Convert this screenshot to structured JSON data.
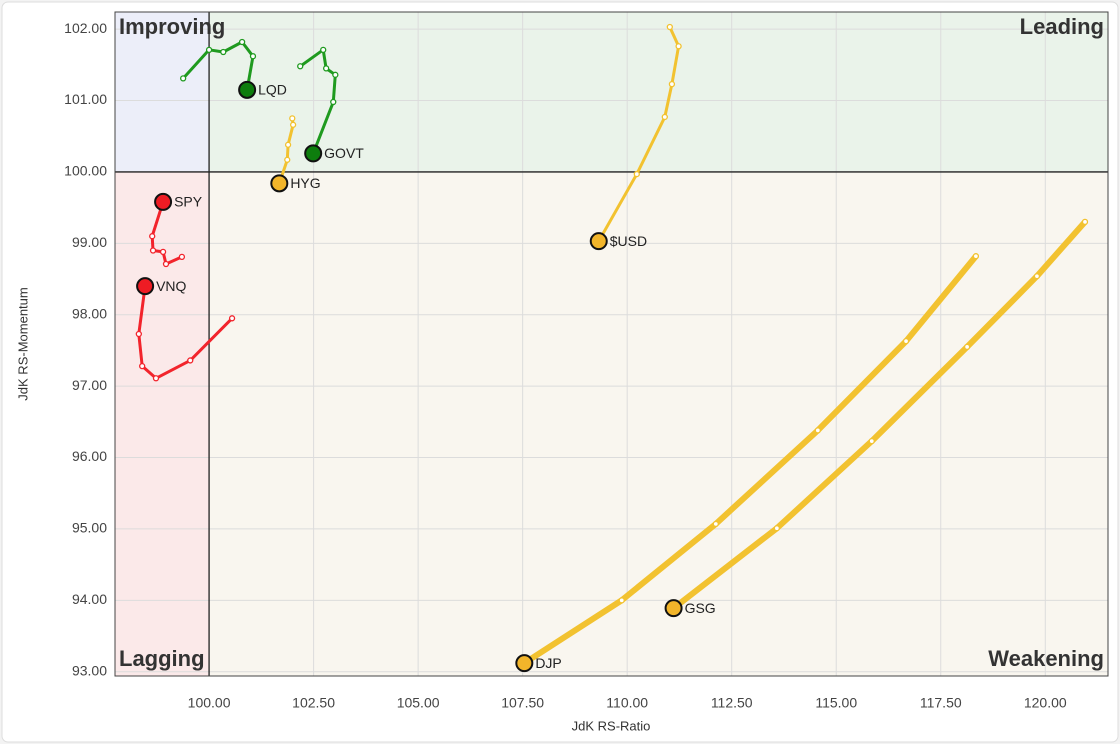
{
  "chart_data": {
    "type": "rrg",
    "x_label": "JdK RS-Ratio",
    "y_label": "JdK RS-Momentum",
    "xlim": [
      97.75,
      121.5
    ],
    "ylim": [
      92.94,
      102.24
    ],
    "center": [
      100,
      100
    ],
    "grid": true,
    "xticks": [
      {
        "value": 100,
        "label": "100.00"
      },
      {
        "value": 102.5,
        "label": "102.50"
      },
      {
        "value": 105,
        "label": "105.00"
      },
      {
        "value": 107.5,
        "label": "107.50"
      },
      {
        "value": 110,
        "label": "110.00"
      },
      {
        "value": 112.5,
        "label": "112.50"
      },
      {
        "value": 115,
        "label": "115.00"
      },
      {
        "value": 117.5,
        "label": "117.50"
      },
      {
        "value": 120,
        "label": "120.00"
      }
    ],
    "yticks": [
      {
        "value": 93,
        "label": "93.00"
      },
      {
        "value": 94,
        "label": "94.00"
      },
      {
        "value": 95,
        "label": "95.00"
      },
      {
        "value": 96,
        "label": "96.00"
      },
      {
        "value": 97,
        "label": "97.00"
      },
      {
        "value": 98,
        "label": "98.00"
      },
      {
        "value": 99,
        "label": "99.00"
      },
      {
        "value": 100,
        "label": "100.00"
      },
      {
        "value": 101,
        "label": "101.00"
      },
      {
        "value": 102,
        "label": "102.00"
      }
    ],
    "quadrants": [
      {
        "text": "Improving",
        "corner": "top-left",
        "color": "#8f93e6",
        "fill": "#eceef9"
      },
      {
        "text": "Leading",
        "corner": "top-right",
        "color": "#5fae5f",
        "fill": "#eaf3ea"
      },
      {
        "text": "Lagging",
        "corner": "bottom-left",
        "color": "#f28c8c",
        "fill": "#fbe9e9"
      },
      {
        "text": "Weakening",
        "corner": "bottom-right",
        "color": "#ecc12f",
        "fill": "#f9f6ef"
      }
    ],
    "series": [
      {
        "name": "LQD",
        "color": "#1f9a1f",
        "head_color": "#0d7d0d",
        "x": [
          99.38,
          100.0,
          100.34,
          100.79,
          101.05,
          100.91
        ],
        "values": [
          101.31,
          101.71,
          101.68,
          101.82,
          101.62,
          101.15
        ]
      },
      {
        "name": "GOVT",
        "color": "#1f9a1f",
        "head_color": "#0d7d0d",
        "x": [
          102.18,
          102.73,
          102.8,
          103.02,
          102.97,
          102.49
        ],
        "values": [
          101.48,
          101.71,
          101.45,
          101.36,
          100.98,
          100.26
        ]
      },
      {
        "name": "HYG",
        "color": "#f2c230",
        "head_color": "#f2b52a",
        "x": [
          101.99,
          102.01,
          101.89,
          101.87,
          101.68
        ],
        "values": [
          100.75,
          100.66,
          100.38,
          100.17,
          99.84
        ]
      },
      {
        "name": "SPY",
        "color": "#f2242c",
        "head_color": "#ee1c24",
        "x": [
          99.35,
          98.97,
          98.9,
          98.66,
          98.64,
          98.9
        ],
        "values": [
          98.81,
          98.71,
          98.88,
          98.9,
          99.1,
          99.58
        ]
      },
      {
        "name": "VNQ",
        "color": "#f2242c",
        "head_color": "#ee1c24",
        "x": [
          100.55,
          99.55,
          98.73,
          98.4,
          98.32,
          98.47
        ],
        "values": [
          97.95,
          97.36,
          97.11,
          97.28,
          97.73,
          98.4
        ]
      },
      {
        "name": "$USD",
        "color": "#f2c230",
        "head_color": "#f2b52a",
        "x": [
          111.02,
          111.23,
          111.07,
          110.9,
          110.23,
          109.32
        ],
        "values": [
          102.03,
          101.76,
          101.23,
          100.77,
          99.97,
          99.03
        ]
      },
      {
        "name": "DJP",
        "color": "#f2c230",
        "head_color": "#f2b52a",
        "x": [
          118.34,
          116.67,
          114.56,
          112.12,
          109.87,
          107.54
        ],
        "values": [
          98.82,
          97.63,
          96.38,
          95.07,
          94.0,
          93.12
        ]
      },
      {
        "name": "GSG",
        "color": "#f2c230",
        "head_color": "#f2b52a",
        "x": [
          120.95,
          119.8,
          118.13,
          115.85,
          113.58,
          111.11
        ],
        "values": [
          99.3,
          98.54,
          97.55,
          96.23,
          95.01,
          93.89
        ]
      }
    ]
  }
}
